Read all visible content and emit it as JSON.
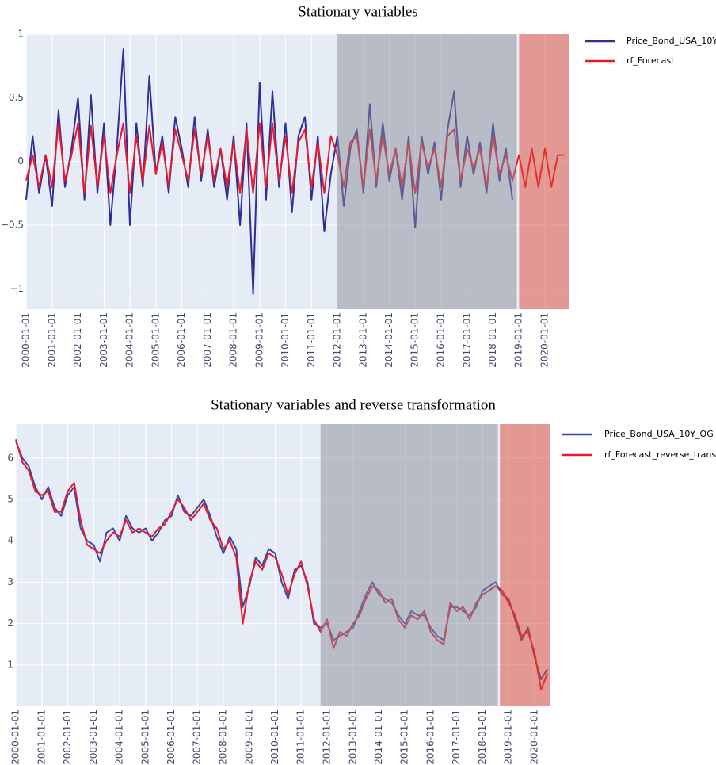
{
  "chart_data": [
    {
      "type": "line",
      "title": "Stationary variables",
      "xlim": [
        "2000-01-01",
        "2020-12-01"
      ],
      "xticks": [
        "2000-01-01",
        "2001-01-01",
        "2002-01-01",
        "2003-01-01",
        "2004-01-01",
        "2005-01-01",
        "2006-01-01",
        "2007-01-01",
        "2008-01-01",
        "2009-01-01",
        "2010-01-01",
        "2011-01-01",
        "2012-01-01",
        "2013-01-01",
        "2014-01-01",
        "2015-01-01",
        "2016-01-01",
        "2017-01-01",
        "2018-01-01",
        "2019-01-01",
        "2020-01-01"
      ],
      "ylim": [
        -1.16,
        1.0
      ],
      "yticks": [
        {
          "value": -1,
          "label": "−1"
        },
        {
          "value": -0.5,
          "label": "−0.5"
        },
        0,
        0.5,
        1
      ],
      "grid": true,
      "legend": "top-right",
      "background": "#e5ecf6",
      "regions": [
        {
          "x0": "2012-01-01",
          "x1": "2018-12-01",
          "color": "#8c8c96"
        },
        {
          "x0": "2019-01-01",
          "x1": "2020-12-01",
          "color": "#e0452f"
        }
      ],
      "series": [
        {
          "name": "Price_Bond_USA_10Y",
          "color": "#2e2e96",
          "x": [
            "2000-01-01",
            "2000-04-01",
            "2000-07-01",
            "2000-10-01",
            "2001-01-01",
            "2001-04-01",
            "2001-07-01",
            "2001-10-01",
            "2002-01-01",
            "2002-04-01",
            "2002-07-01",
            "2002-10-01",
            "2003-01-01",
            "2003-04-01",
            "2003-07-01",
            "2003-10-01",
            "2004-01-01",
            "2004-04-01",
            "2004-07-01",
            "2004-10-01",
            "2005-01-01",
            "2005-04-01",
            "2005-07-01",
            "2005-10-01",
            "2006-01-01",
            "2006-04-01",
            "2006-07-01",
            "2006-10-01",
            "2007-01-01",
            "2007-04-01",
            "2007-07-01",
            "2007-10-01",
            "2008-01-01",
            "2008-04-01",
            "2008-07-01",
            "2008-10-01",
            "2009-01-01",
            "2009-04-01",
            "2009-07-01",
            "2009-10-01",
            "2010-01-01",
            "2010-04-01",
            "2010-07-01",
            "2010-10-01",
            "2011-01-01",
            "2011-04-01",
            "2011-07-01",
            "2011-10-01",
            "2012-01-01",
            "2012-04-01",
            "2012-07-01",
            "2012-10-01",
            "2013-01-01",
            "2013-04-01",
            "2013-07-01",
            "2013-10-01",
            "2014-01-01",
            "2014-04-01",
            "2014-07-01",
            "2014-10-01",
            "2015-01-01",
            "2015-04-01",
            "2015-07-01",
            "2015-10-01",
            "2016-01-01",
            "2016-04-01",
            "2016-07-01",
            "2016-10-01",
            "2017-01-01",
            "2017-04-01",
            "2017-07-01",
            "2017-10-01",
            "2018-01-01",
            "2018-04-01",
            "2018-07-01",
            "2018-10-01"
          ],
          "values": [
            -0.3,
            0.2,
            -0.25,
            0.05,
            -0.35,
            0.4,
            -0.2,
            0.1,
            0.5,
            -0.3,
            0.52,
            -0.25,
            0.3,
            -0.5,
            0.1,
            0.88,
            -0.5,
            0.3,
            -0.2,
            0.67,
            -0.1,
            0.2,
            -0.25,
            0.35,
            0.1,
            -0.2,
            0.35,
            -0.15,
            0.25,
            -0.2,
            0.1,
            -0.3,
            0.2,
            -0.5,
            0.3,
            -1.04,
            0.62,
            -0.3,
            0.55,
            -0.2,
            0.3,
            -0.4,
            0.2,
            0.35,
            -0.3,
            0.2,
            -0.55,
            -0.1,
            0.2,
            -0.35,
            0.1,
            0.25,
            -0.25,
            0.45,
            -0.2,
            0.3,
            -0.15,
            0.1,
            -0.3,
            0.2,
            -0.52,
            0.2,
            -0.1,
            0.15,
            -0.3,
            0.25,
            0.55,
            -0.2,
            0.2,
            -0.1,
            0.15,
            -0.25,
            0.3,
            -0.15,
            0.1,
            -0.3
          ]
        },
        {
          "name": "rf_Forecast",
          "color": "#e8192c",
          "x": [
            "2000-01-01",
            "2000-04-01",
            "2000-07-01",
            "2000-10-01",
            "2001-01-01",
            "2001-04-01",
            "2001-07-01",
            "2001-10-01",
            "2002-01-01",
            "2002-04-01",
            "2002-07-01",
            "2002-10-01",
            "2003-01-01",
            "2003-04-01",
            "2003-07-01",
            "2003-10-01",
            "2004-01-01",
            "2004-04-01",
            "2004-07-01",
            "2004-10-01",
            "2005-01-01",
            "2005-04-01",
            "2005-07-01",
            "2005-10-01",
            "2006-01-01",
            "2006-04-01",
            "2006-07-01",
            "2006-10-01",
            "2007-01-01",
            "2007-04-01",
            "2007-07-01",
            "2007-10-01",
            "2008-01-01",
            "2008-04-01",
            "2008-07-01",
            "2008-10-01",
            "2009-01-01",
            "2009-04-01",
            "2009-07-01",
            "2009-10-01",
            "2010-01-01",
            "2010-04-01",
            "2010-07-01",
            "2010-10-01",
            "2011-01-01",
            "2011-04-01",
            "2011-07-01",
            "2011-10-01",
            "2012-01-01",
            "2012-04-01",
            "2012-07-01",
            "2012-10-01",
            "2013-01-01",
            "2013-04-01",
            "2013-07-01",
            "2013-10-01",
            "2014-01-01",
            "2014-04-01",
            "2014-07-01",
            "2014-10-01",
            "2015-01-01",
            "2015-04-01",
            "2015-07-01",
            "2015-10-01",
            "2016-01-01",
            "2016-04-01",
            "2016-07-01",
            "2016-10-01",
            "2017-01-01",
            "2017-04-01",
            "2017-07-01",
            "2017-10-01",
            "2018-01-01",
            "2018-04-01",
            "2018-07-01",
            "2018-10-01",
            "2019-01-01",
            "2019-04-01",
            "2019-07-01",
            "2019-10-01",
            "2020-01-01",
            "2020-04-01",
            "2020-07-01",
            "2020-10-01"
          ],
          "values": [
            -0.15,
            0.05,
            -0.2,
            0.05,
            -0.2,
            0.3,
            -0.15,
            0.05,
            0.3,
            -0.25,
            0.28,
            -0.2,
            0.2,
            -0.25,
            0.05,
            0.3,
            -0.25,
            0.2,
            -0.15,
            0.28,
            -0.1,
            0.15,
            -0.2,
            0.25,
            0.05,
            -0.15,
            0.25,
            -0.1,
            0.2,
            -0.15,
            0.1,
            -0.2,
            0.15,
            -0.25,
            0.25,
            -0.25,
            0.3,
            -0.2,
            0.3,
            -0.15,
            0.2,
            -0.25,
            0.15,
            0.25,
            -0.2,
            0.15,
            -0.25,
            0.2,
            0.05,
            -0.2,
            0.15,
            0.2,
            -0.2,
            0.25,
            -0.15,
            0.2,
            -0.1,
            0.1,
            -0.2,
            0.15,
            -0.25,
            0.15,
            -0.05,
            0.1,
            -0.2,
            0.2,
            0.25,
            -0.15,
            0.1,
            -0.05,
            0.1,
            -0.2,
            0.2,
            -0.1,
            0.05,
            -0.15,
            0.05,
            -0.2,
            0.1,
            -0.2,
            0.1,
            -0.2,
            0.05,
            0.05
          ]
        }
      ]
    },
    {
      "type": "line",
      "title": "Stationary variables and reverse transformation",
      "xlim": [
        "2000-01-01",
        "2020-08-01"
      ],
      "xticks": [
        "2000-01-01",
        "2001-01-01",
        "2002-01-01",
        "2003-01-01",
        "2004-01-01",
        "2005-01-01",
        "2006-01-01",
        "2007-01-01",
        "2008-01-01",
        "2009-01-01",
        "2010-01-01",
        "2011-01-01",
        "2012-01-01",
        "2013-01-01",
        "2014-01-01",
        "2015-01-01",
        "2016-01-01",
        "2017-01-01",
        "2018-01-01",
        "2019-01-01",
        "2020-01-01"
      ],
      "ylim": [
        0,
        6.82
      ],
      "yticks": [
        1,
        2,
        3,
        4,
        5,
        6
      ],
      "grid": true,
      "legend": "top-right",
      "background": "#e5ecf6",
      "regions": [
        {
          "x0": "2011-10-01",
          "x1": "2018-08-01",
          "color": "#8c8c96"
        },
        {
          "x0": "2018-09-01",
          "x1": "2020-08-01",
          "color": "#e0452f"
        }
      ],
      "series": [
        {
          "name": "Price_Bond_USA_10Y_OG",
          "color": "#3a46a4",
          "x": [
            "2000-01-01",
            "2000-04-01",
            "2000-07-01",
            "2000-10-01",
            "2001-01-01",
            "2001-04-01",
            "2001-07-01",
            "2001-10-01",
            "2002-01-01",
            "2002-04-01",
            "2002-07-01",
            "2002-10-01",
            "2003-01-01",
            "2003-04-01",
            "2003-07-01",
            "2003-10-01",
            "2004-01-01",
            "2004-04-01",
            "2004-07-01",
            "2004-10-01",
            "2005-01-01",
            "2005-04-01",
            "2005-07-01",
            "2005-10-01",
            "2006-01-01",
            "2006-04-01",
            "2006-07-01",
            "2006-10-01",
            "2007-01-01",
            "2007-04-01",
            "2007-07-01",
            "2007-10-01",
            "2008-01-01",
            "2008-04-01",
            "2008-07-01",
            "2008-10-01",
            "2009-01-01",
            "2009-04-01",
            "2009-07-01",
            "2009-10-01",
            "2010-01-01",
            "2010-04-01",
            "2010-07-01",
            "2010-10-01",
            "2011-01-01",
            "2011-04-01",
            "2011-07-01",
            "2011-10-01",
            "2012-01-01",
            "2012-04-01",
            "2012-07-01",
            "2012-10-01",
            "2013-01-01",
            "2013-04-01",
            "2013-07-01",
            "2013-10-01",
            "2014-01-01",
            "2014-04-01",
            "2014-07-01",
            "2014-10-01",
            "2015-01-01",
            "2015-04-01",
            "2015-07-01",
            "2015-10-01",
            "2016-01-01",
            "2016-04-01",
            "2016-07-01",
            "2016-10-01",
            "2017-01-01",
            "2017-04-01",
            "2017-07-01",
            "2017-10-01",
            "2018-01-01",
            "2018-04-01",
            "2018-07-01",
            "2018-10-01",
            "2019-01-01",
            "2019-04-01",
            "2019-07-01",
            "2019-10-01",
            "2020-01-01",
            "2020-04-01",
            "2020-07-01"
          ],
          "values": [
            6.4,
            6.0,
            5.8,
            5.3,
            5.0,
            5.3,
            4.8,
            4.6,
            5.1,
            5.3,
            4.3,
            4.0,
            3.9,
            3.5,
            4.2,
            4.3,
            4.0,
            4.6,
            4.3,
            4.2,
            4.3,
            4.0,
            4.2,
            4.5,
            4.6,
            5.1,
            4.7,
            4.6,
            4.8,
            5.0,
            4.6,
            4.1,
            3.7,
            4.1,
            3.8,
            2.4,
            2.9,
            3.6,
            3.4,
            3.8,
            3.7,
            3.0,
            2.6,
            3.3,
            3.4,
            3.0,
            2.0,
            1.9,
            2.0,
            1.6,
            1.7,
            1.8,
            1.9,
            2.3,
            2.7,
            3.0,
            2.7,
            2.6,
            2.5,
            2.2,
            2.0,
            2.3,
            2.2,
            2.2,
            1.9,
            1.7,
            1.6,
            2.4,
            2.4,
            2.3,
            2.2,
            2.4,
            2.8,
            2.9,
            3.0,
            2.7,
            2.6,
            2.1,
            1.6,
            1.9,
            1.2,
            0.65,
            0.9
          ]
        },
        {
          "name": "rf_Forecast_reverse_trans",
          "color": "#e8192c",
          "x": [
            "2000-01-01",
            "2000-04-01",
            "2000-07-01",
            "2000-10-01",
            "2001-01-01",
            "2001-04-01",
            "2001-07-01",
            "2001-10-01",
            "2002-01-01",
            "2002-04-01",
            "2002-07-01",
            "2002-10-01",
            "2003-01-01",
            "2003-04-01",
            "2003-07-01",
            "2003-10-01",
            "2004-01-01",
            "2004-04-01",
            "2004-07-01",
            "2004-10-01",
            "2005-01-01",
            "2005-04-01",
            "2005-07-01",
            "2005-10-01",
            "2006-01-01",
            "2006-04-01",
            "2006-07-01",
            "2006-10-01",
            "2007-01-01",
            "2007-04-01",
            "2007-07-01",
            "2007-10-01",
            "2008-01-01",
            "2008-04-01",
            "2008-07-01",
            "2008-10-01",
            "2009-01-01",
            "2009-04-01",
            "2009-07-01",
            "2009-10-01",
            "2010-01-01",
            "2010-04-01",
            "2010-07-01",
            "2010-10-01",
            "2011-01-01",
            "2011-04-01",
            "2011-07-01",
            "2011-10-01",
            "2012-01-01",
            "2012-04-01",
            "2012-07-01",
            "2012-10-01",
            "2013-01-01",
            "2013-04-01",
            "2013-07-01",
            "2013-10-01",
            "2014-01-01",
            "2014-04-01",
            "2014-07-01",
            "2014-10-01",
            "2015-01-01",
            "2015-04-01",
            "2015-07-01",
            "2015-10-01",
            "2016-01-01",
            "2016-04-01",
            "2016-07-01",
            "2016-10-01",
            "2017-01-01",
            "2017-04-01",
            "2017-07-01",
            "2017-10-01",
            "2018-01-01",
            "2018-04-01",
            "2018-07-01",
            "2018-10-01",
            "2019-01-01",
            "2019-04-01",
            "2019-07-01",
            "2019-10-01",
            "2020-01-01",
            "2020-04-01",
            "2020-07-01"
          ],
          "values": [
            6.45,
            5.9,
            5.7,
            5.2,
            5.1,
            5.2,
            4.7,
            4.7,
            5.2,
            5.4,
            4.5,
            3.9,
            3.8,
            3.7,
            4.0,
            4.2,
            4.1,
            4.5,
            4.2,
            4.3,
            4.2,
            4.1,
            4.3,
            4.4,
            4.7,
            5.0,
            4.8,
            4.5,
            4.7,
            4.9,
            4.5,
            4.3,
            3.8,
            4.0,
            3.6,
            2.0,
            3.0,
            3.5,
            3.3,
            3.7,
            3.6,
            3.2,
            2.7,
            3.2,
            3.5,
            2.9,
            2.1,
            1.8,
            2.1,
            1.4,
            1.8,
            1.7,
            2.0,
            2.2,
            2.6,
            2.9,
            2.8,
            2.5,
            2.6,
            2.1,
            1.9,
            2.2,
            2.1,
            2.3,
            1.8,
            1.6,
            1.5,
            2.5,
            2.3,
            2.4,
            2.1,
            2.5,
            2.7,
            2.8,
            2.9,
            2.8,
            2.5,
            2.2,
            1.7,
            1.8,
            1.3,
            0.4,
            0.8
          ]
        }
      ]
    }
  ]
}
